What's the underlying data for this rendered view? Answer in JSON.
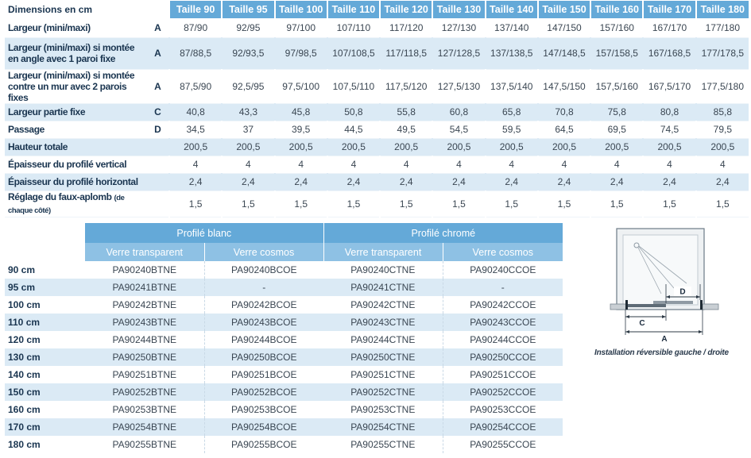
{
  "dimensions": {
    "corner_label": "Dimensions en cm",
    "sizes": [
      "Taille 90",
      "Taille 95",
      "Taille 100",
      "Taille 110",
      "Taille 120",
      "Taille 130",
      "Taille 140",
      "Taille 150",
      "Taille 160",
      "Taille 170",
      "Taille 180"
    ],
    "rows": [
      {
        "label": "Largeur (mini/maxi)",
        "code": "A",
        "values": [
          "87/90",
          "92/95",
          "97/100",
          "107/110",
          "117/120",
          "127/130",
          "137/140",
          "147/150",
          "157/160",
          "167/170",
          "177/180"
        ]
      },
      {
        "label": "Largeur (mini/maxi) si montée en angle avec 1 paroi fixe",
        "code": "A",
        "values": [
          "87/88,5",
          "92/93,5",
          "97/98,5",
          "107/108,5",
          "117/118,5",
          "127/128,5",
          "137/138,5",
          "147/148,5",
          "157/158,5",
          "167/168,5",
          "177/178,5"
        ]
      },
      {
        "label": "Largeur (mini/maxi) si montée contre un mur avec 2 parois fixes",
        "code": "A",
        "values": [
          "87,5/90",
          "92,5/95",
          "97,5/100",
          "107,5/110",
          "117,5/120",
          "127,5/130",
          "137,5/140",
          "147,5/150",
          "157,5/160",
          "167,5/170",
          "177,5/180"
        ]
      },
      {
        "label": "Largeur partie fixe",
        "code": "C",
        "values": [
          "40,8",
          "43,3",
          "45,8",
          "50,8",
          "55,8",
          "60,8",
          "65,8",
          "70,8",
          "75,8",
          "80,8",
          "85,8"
        ]
      },
      {
        "label": "Passage",
        "code": "D",
        "values": [
          "34,5",
          "37",
          "39,5",
          "44,5",
          "49,5",
          "54,5",
          "59,5",
          "64,5",
          "69,5",
          "74,5",
          "79,5"
        ]
      },
      {
        "label": "Hauteur totale",
        "code": "",
        "values": [
          "200,5",
          "200,5",
          "200,5",
          "200,5",
          "200,5",
          "200,5",
          "200,5",
          "200,5",
          "200,5",
          "200,5",
          "200,5"
        ]
      },
      {
        "label": "Épaisseur du profilé vertical",
        "code": "",
        "values": [
          "4",
          "4",
          "4",
          "4",
          "4",
          "4",
          "4",
          "4",
          "4",
          "4",
          "4"
        ]
      },
      {
        "label": "Épaisseur du profilé horizontal",
        "code": "",
        "values": [
          "2,4",
          "2,4",
          "2,4",
          "2,4",
          "2,4",
          "2,4",
          "2,4",
          "2,4",
          "2,4",
          "2,4",
          "2,4"
        ]
      },
      {
        "label": "Réglage du faux-aplomb",
        "label_note": "(de chaque côté)",
        "code": "",
        "values": [
          "1,5",
          "1,5",
          "1,5",
          "1,5",
          "1,5",
          "1,5",
          "1,5",
          "1,5",
          "1,5",
          "1,5",
          "1,5"
        ]
      }
    ]
  },
  "references": {
    "groups": [
      "Profilé blanc",
      "Profilé chromé"
    ],
    "subheaders": [
      "Verre transparent",
      "Verre cosmos",
      "Verre transparent",
      "Verre cosmos"
    ],
    "rows": [
      {
        "size": "90 cm",
        "refs": [
          "PA90240BTNE",
          "PA90240BCOE",
          "PA90240CTNE",
          "PA90240CCOE"
        ]
      },
      {
        "size": "95 cm",
        "refs": [
          "PA90241BTNE",
          "-",
          "PA90241CTNE",
          "-"
        ]
      },
      {
        "size": "100 cm",
        "refs": [
          "PA90242BTNE",
          "PA90242BCOE",
          "PA90242CTNE",
          "PA90242CCOE"
        ]
      },
      {
        "size": "110 cm",
        "refs": [
          "PA90243BTNE",
          "PA90243BCOE",
          "PA90243CTNE",
          "PA90243CCOE"
        ]
      },
      {
        "size": "120 cm",
        "refs": [
          "PA90244BTNE",
          "PA90244BCOE",
          "PA90244CTNE",
          "PA90244CCOE"
        ]
      },
      {
        "size": "130 cm",
        "refs": [
          "PA90250BTNE",
          "PA90250BCOE",
          "PA90250CTNE",
          "PA90250CCOE"
        ]
      },
      {
        "size": "140 cm",
        "refs": [
          "PA90251BTNE",
          "PA90251BCOE",
          "PA90251CTNE",
          "PA90251CCOE"
        ]
      },
      {
        "size": "150 cm",
        "refs": [
          "PA90252BTNE",
          "PA90252BCOE",
          "PA90252CTNE",
          "PA90252CCOE"
        ]
      },
      {
        "size": "160 cm",
        "refs": [
          "PA90253BTNE",
          "PA90253BCOE",
          "PA90253CTNE",
          "PA90253CCOE"
        ]
      },
      {
        "size": "170 cm",
        "refs": [
          "PA90254BTNE",
          "PA90254BCOE",
          "PA90254CTNE",
          "PA90254CCOE"
        ]
      },
      {
        "size": "180 cm",
        "refs": [
          "PA90255BTNE",
          "PA90255BCOE",
          "PA90255CTNE",
          "PA90255CCOE"
        ]
      }
    ]
  },
  "diagram": {
    "labels": {
      "a": "A",
      "c": "C",
      "d": "D"
    },
    "caption": "Installation réversible gauche / droite"
  },
  "colors": {
    "header_blue": "#64a9d8",
    "subheader_blue": "#8ec1e4",
    "row_stripe": "#dbeaf5",
    "label_text": "#1a3550"
  }
}
